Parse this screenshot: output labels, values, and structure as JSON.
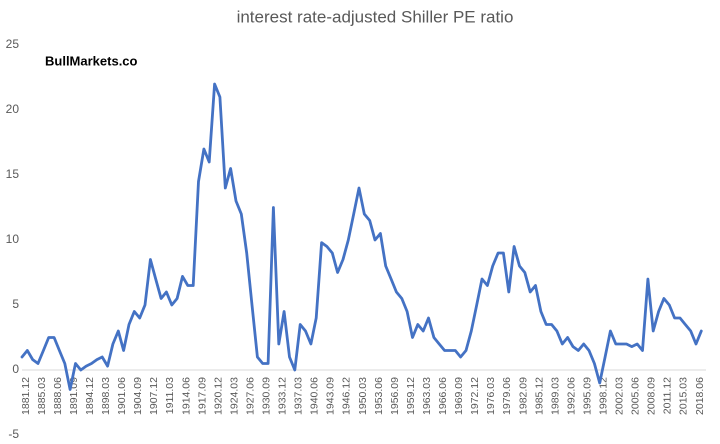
{
  "chart_data": {
    "type": "line",
    "title": "interest rate-adjusted Shiller PE ratio",
    "annotation": "BullMarkets.co",
    "categories": [
      "1881.12",
      null,
      null,
      "1885.03",
      null,
      null,
      "1888.06",
      null,
      null,
      "1891.09",
      null,
      null,
      "1894.12",
      null,
      null,
      "1898.03",
      null,
      null,
      "1901.06",
      null,
      null,
      "1904.09",
      null,
      null,
      "1907.12",
      null,
      null,
      "1911.03",
      null,
      null,
      "1914.06",
      null,
      null,
      "1917.09",
      null,
      null,
      "1920.12",
      null,
      null,
      "1924.03",
      null,
      null,
      "1927.06",
      null,
      null,
      "1930.09",
      null,
      null,
      "1933.12",
      null,
      null,
      "1937.03",
      null,
      null,
      "1940.06",
      null,
      null,
      "1943.09",
      null,
      null,
      "1946.12",
      null,
      null,
      "1950.03",
      null,
      null,
      "1953.06",
      null,
      null,
      "1956.09",
      null,
      null,
      "1959.12",
      null,
      null,
      "1963.03",
      null,
      null,
      "1966.06",
      null,
      null,
      "1969.09",
      null,
      null,
      "1972.12",
      null,
      null,
      "1976.03",
      null,
      null,
      "1979.06",
      null,
      null,
      "1982.09",
      null,
      null,
      "1985.12",
      null,
      null,
      "1989.03",
      null,
      null,
      "1992.06",
      null,
      null,
      "1995.09",
      null,
      null,
      "1998.12",
      null,
      null,
      "2002.03",
      null,
      null,
      "2005.06",
      null,
      null,
      "2008.09",
      null,
      null,
      "2011.12",
      null,
      null,
      "2015.03",
      null,
      null,
      "2018.06",
      null
    ],
    "series": [
      {
        "name": "interest rate-adjusted Shiller PE ratio",
        "color": "#4472c4",
        "values": [
          1,
          1.5,
          0.8,
          0.5,
          1.5,
          2.5,
          2.5,
          1.5,
          0.5,
          -1.5,
          0.5,
          0,
          0.3,
          0.5,
          0.8,
          1,
          0.3,
          2,
          3,
          1.5,
          3.5,
          4.5,
          4,
          5,
          8.5,
          7,
          5.5,
          6,
          5,
          5.5,
          7.2,
          6.5,
          6.5,
          14.5,
          17,
          16,
          22,
          21,
          14,
          15.5,
          13,
          12,
          9,
          5,
          1,
          0.5,
          0.5,
          12.5,
          2,
          4.5,
          1,
          0,
          3.5,
          3,
          2,
          4,
          9.8,
          9.5,
          9,
          7.5,
          8.5,
          10,
          12,
          14,
          12,
          11.5,
          10,
          10.5,
          8,
          7,
          6,
          5.5,
          4.5,
          2.5,
          3.5,
          3,
          4,
          2.5,
          2,
          1.5,
          1.5,
          1.5,
          1,
          1.5,
          3,
          5,
          7,
          6.5,
          8,
          9,
          9,
          6,
          9.5,
          8,
          7.5,
          6,
          6.5,
          4.5,
          3.5,
          3.5,
          3,
          2,
          2.5,
          1.8,
          1.5,
          2,
          1.5,
          0.5,
          -1,
          1,
          3,
          2,
          2,
          2,
          1.8,
          2,
          1.5,
          7,
          3,
          4.5,
          5.5,
          5,
          4,
          4,
          3.5,
          3,
          2,
          3
        ]
      }
    ],
    "ylim": [
      -5,
      25
    ],
    "yticks": [
      -5,
      0,
      5,
      10,
      15,
      20,
      25
    ],
    "grid": false
  }
}
